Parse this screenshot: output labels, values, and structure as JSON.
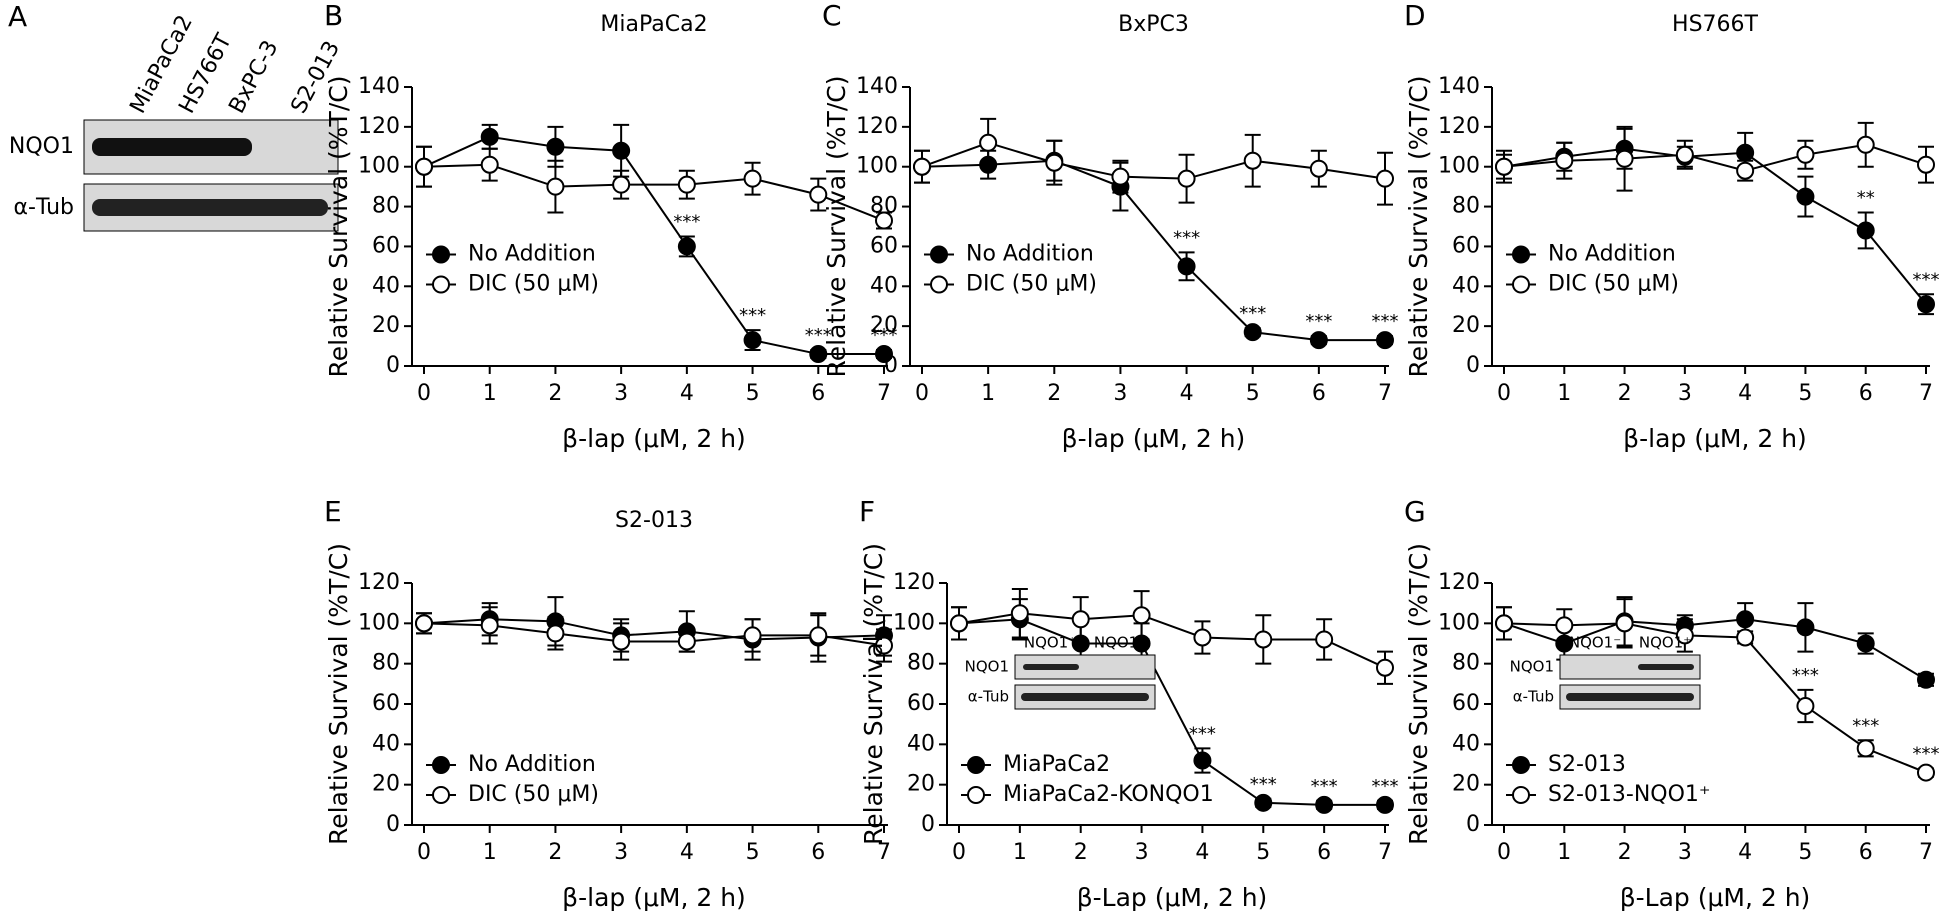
{
  "blot": {
    "panel": "A",
    "lanes": [
      "MiaPaCa2",
      "HS766T",
      "BxPC-3",
      "S2-013"
    ],
    "rows": [
      "NQO1",
      "α-Tub"
    ]
  },
  "chart_data": [
    {
      "type": "line",
      "panel": "B",
      "title": "MiaPaCa2",
      "xlabel": "β-lap (μM, 2 h)",
      "ylabel": "Relative Survival (%T/C)",
      "x": [
        0,
        1,
        2,
        3,
        4,
        5,
        6,
        7
      ],
      "xlim": [
        0,
        7
      ],
      "xticks": [
        0,
        1,
        2,
        3,
        4,
        5,
        6,
        7
      ],
      "ylim": [
        0,
        140
      ],
      "yticks": [
        0,
        20,
        40,
        60,
        80,
        100,
        120,
        140
      ],
      "legend": "center left",
      "series": [
        {
          "name": "No Addition",
          "color": "#000000",
          "marker_fill": "#000000",
          "values": [
            100,
            115,
            110,
            108,
            60,
            13,
            6,
            6
          ],
          "errors": [
            10,
            6,
            10,
            13,
            5,
            5,
            2,
            2
          ],
          "significance": [
            null,
            null,
            null,
            null,
            "***",
            "***",
            "***",
            "***"
          ]
        },
        {
          "name": "DIC (50 μM)",
          "color": "#000000",
          "marker_fill": "#ffffff",
          "values": [
            100,
            101,
            90,
            91,
            91,
            94,
            86,
            73
          ],
          "errors": [
            10,
            8,
            13,
            7,
            7,
            8,
            8,
            4
          ]
        }
      ]
    },
    {
      "type": "line",
      "panel": "C",
      "title": "BxPC3",
      "xlabel": "β-lap (μM, 2 h)",
      "ylabel": "Relative Survival (%T/C)",
      "x": [
        0,
        1,
        2,
        3,
        4,
        5,
        6,
        7
      ],
      "xlim": [
        0,
        7
      ],
      "xticks": [
        0,
        1,
        2,
        3,
        4,
        5,
        6,
        7
      ],
      "ylim": [
        0,
        140
      ],
      "yticks": [
        0,
        20,
        40,
        60,
        80,
        100,
        120,
        140
      ],
      "legend": "center left",
      "series": [
        {
          "name": "No Addition",
          "color": "#000000",
          "marker_fill": "#000000",
          "values": [
            100,
            101,
            103,
            90,
            50,
            17,
            13,
            13
          ],
          "errors": [
            8,
            7,
            10,
            12,
            7,
            2,
            2,
            2
          ],
          "significance": [
            null,
            null,
            null,
            null,
            "***",
            "***",
            "***",
            "***"
          ]
        },
        {
          "name": "DIC (50 μM)",
          "color": "#000000",
          "marker_fill": "#ffffff",
          "values": [
            100,
            112,
            102,
            95,
            94,
            103,
            99,
            94
          ],
          "errors": [
            8,
            12,
            11,
            8,
            12,
            13,
            9,
            13
          ]
        }
      ]
    },
    {
      "type": "line",
      "panel": "D",
      "title": "HS766T",
      "xlabel": "β-lap (μM, 2 h)",
      "ylabel": "Relative Survival (%T/C)",
      "x": [
        0,
        1,
        2,
        3,
        4,
        5,
        6,
        7
      ],
      "xlim": [
        0,
        7
      ],
      "xticks": [
        0,
        1,
        2,
        3,
        4,
        5,
        6,
        7
      ],
      "ylim": [
        0,
        140
      ],
      "yticks": [
        0,
        20,
        40,
        60,
        80,
        100,
        120,
        140
      ],
      "legend": "center left",
      "series": [
        {
          "name": "No Addition",
          "color": "#000000",
          "marker_fill": "#000000",
          "values": [
            100,
            105,
            109,
            105,
            107,
            85,
            68,
            31
          ],
          "errors": [
            6,
            7,
            10,
            5,
            10,
            10,
            9,
            5
          ],
          "significance": [
            null,
            null,
            null,
            null,
            null,
            null,
            "**",
            "***"
          ]
        },
        {
          "name": "DIC (50 μM)",
          "color": "#000000",
          "marker_fill": "#ffffff",
          "values": [
            100,
            103,
            104,
            106,
            98,
            106,
            111,
            101
          ],
          "errors": [
            8,
            9,
            16,
            7,
            5,
            7,
            11,
            9
          ]
        }
      ]
    },
    {
      "type": "line",
      "panel": "E",
      "title": "S2-013",
      "xlabel": "β-lap (μM, 2 h)",
      "ylabel": "Relative Survival (%T/C)",
      "x": [
        0,
        1,
        2,
        3,
        4,
        5,
        6,
        7
      ],
      "xlim": [
        0,
        7
      ],
      "xticks": [
        0,
        1,
        2,
        3,
        4,
        5,
        6,
        7
      ],
      "ylim": [
        0,
        120
      ],
      "yticks": [
        0,
        20,
        40,
        60,
        80,
        100,
        120
      ],
      "legend": "lower left",
      "series": [
        {
          "name": "No Addition",
          "color": "#000000",
          "marker_fill": "#000000",
          "values": [
            100,
            102,
            101,
            94,
            96,
            92,
            93,
            94
          ],
          "errors": [
            5,
            8,
            12,
            8,
            10,
            10,
            12,
            10
          ]
        },
        {
          "name": "DIC (50 μM)",
          "color": "#000000",
          "marker_fill": "#ffffff",
          "values": [
            100,
            99,
            95,
            91,
            91,
            94,
            94,
            89
          ],
          "errors": [
            5,
            9,
            8,
            9,
            5,
            8,
            10,
            8
          ]
        }
      ]
    },
    {
      "type": "line",
      "panel": "F",
      "xlabel": "β-Lap (μM, 2 h)",
      "ylabel": "Relative Survival (%T/C)",
      "x": [
        0,
        1,
        2,
        3,
        4,
        5,
        6,
        7
      ],
      "xlim": [
        0,
        7
      ],
      "xticks": [
        0,
        1,
        2,
        3,
        4,
        5,
        6,
        7
      ],
      "ylim": [
        0,
        120
      ],
      "yticks": [
        0,
        20,
        40,
        60,
        80,
        100,
        120
      ],
      "legend": "lower left",
      "inset": {
        "columns": [
          "NQO1⁺",
          "NQO1⁻"
        ],
        "rows": [
          "NQO1",
          "α-Tub"
        ]
      },
      "series": [
        {
          "name": "MiaPaCa2",
          "color": "#000000",
          "marker_fill": "#000000",
          "values": [
            100,
            102,
            90,
            90,
            32,
            11,
            10,
            10
          ],
          "errors": [
            8,
            10,
            12,
            10,
            6,
            2,
            2,
            2
          ],
          "significance": [
            null,
            null,
            null,
            null,
            "***",
            "***",
            "***",
            "***"
          ]
        },
        {
          "name": "MiaPaCa2-KONQO1",
          "color": "#000000",
          "marker_fill": "#ffffff",
          "values": [
            100,
            105,
            102,
            104,
            93,
            92,
            92,
            78
          ],
          "errors": [
            8,
            12,
            11,
            12,
            8,
            12,
            10,
            8
          ]
        }
      ]
    },
    {
      "type": "line",
      "panel": "G",
      "xlabel": "β-Lap (μM, 2 h)",
      "ylabel": "Relative Survival (%T/C)",
      "x": [
        0,
        1,
        2,
        3,
        4,
        5,
        6,
        7
      ],
      "xlim": [
        0,
        7
      ],
      "xticks": [
        0,
        1,
        2,
        3,
        4,
        5,
        6,
        7
      ],
      "ylim": [
        0,
        120
      ],
      "yticks": [
        0,
        20,
        40,
        60,
        80,
        100,
        120
      ],
      "legend": "lower left",
      "inset": {
        "columns": [
          "NQO1⁻",
          "NQO1⁺"
        ],
        "rows": [
          "NQO1",
          "α-Tub"
        ]
      },
      "series": [
        {
          "name": "S2-013",
          "color": "#000000",
          "marker_fill": "#000000",
          "values": [
            100,
            90,
            101,
            99,
            102,
            98,
            90,
            72
          ],
          "errors": [
            8,
            8,
            12,
            5,
            8,
            12,
            5,
            3
          ]
        },
        {
          "name": "S2-013-NQO1⁺",
          "color": "#000000",
          "marker_fill": "#ffffff",
          "values": [
            100,
            99,
            100,
            94,
            93,
            59,
            38,
            26
          ],
          "errors": [
            8,
            8,
            12,
            8,
            3,
            8,
            4,
            2
          ],
          "significance": [
            null,
            null,
            null,
            null,
            null,
            "***",
            "***",
            "***"
          ]
        }
      ]
    }
  ]
}
